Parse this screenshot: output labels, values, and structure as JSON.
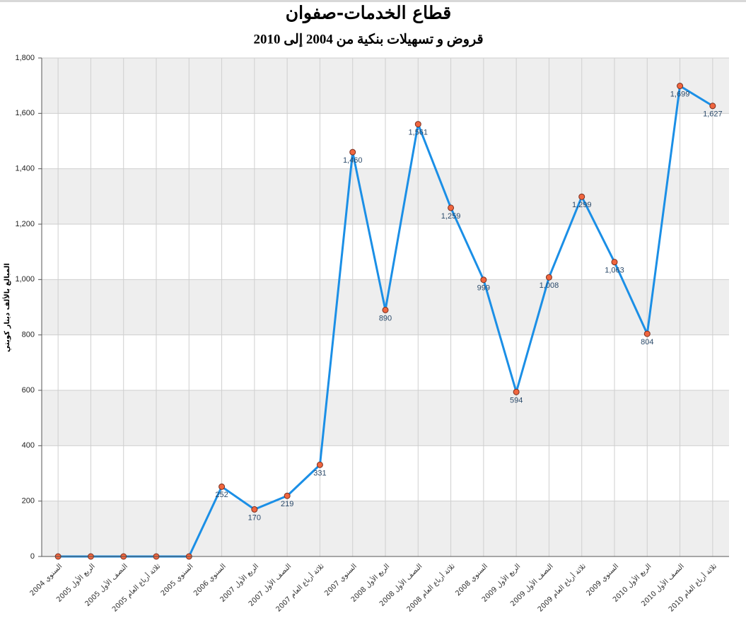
{
  "chart_data": {
    "type": "line",
    "title": "قطاع الخدمات-صفوان",
    "subtitle": "قروض و تسهيلات بنكية من 2004 إلى 2010",
    "y_label": "المبالغ بالألف دينار كويتي",
    "categories": [
      "السنوي 2004",
      "الربع الأول 2005",
      "النصف الأول 2005",
      "ثلاثة أرباع العام 2005",
      "السنوي 2005",
      "السنوي 2006",
      "الربع الأول 2007",
      "النصف الأول 2007",
      "ثلاثة أرباع العام 2007",
      "السنوي 2007",
      "الربع الأول 2008",
      "النصف الأول 2008",
      "ثلاثة أرباع العام 2008",
      "السنوي 2008",
      "الربع الأول 2009",
      "النصف الأول 2009",
      "ثلاثة أرباع العام 2009",
      "السنوي 2009",
      "الربع الأول 2010",
      "النصف الأول 2010",
      "ثلاثة أرباع العام 2010"
    ],
    "values": [
      0,
      0,
      0,
      0,
      0,
      252,
      170,
      219,
      331,
      1460,
      890,
      1561,
      1259,
      999,
      594,
      1008,
      1299,
      1063,
      804,
      1699,
      1627
    ],
    "value_labels": [
      null,
      null,
      null,
      null,
      null,
      "252",
      "170",
      "219",
      "331",
      "1,460",
      "890",
      "1,561",
      "1,259",
      "999",
      "594",
      "1,008",
      "1,299",
      "1,063",
      "804",
      "1,699",
      "1,627"
    ],
    "color": "#1b8fe6",
    "marker_color": "#f0663f",
    "ylim": [
      0,
      1800
    ],
    "yticks": [
      0,
      200,
      400,
      600,
      800,
      {
        "value": 1000,
        "label": "1,000"
      },
      {
        "value": 1200,
        "label": "1,200"
      },
      {
        "value": 1400,
        "label": "1,400"
      },
      {
        "value": 1600,
        "label": "1,600"
      },
      {
        "value": 1800,
        "label": "1,800"
      }
    ],
    "grid": true
  }
}
